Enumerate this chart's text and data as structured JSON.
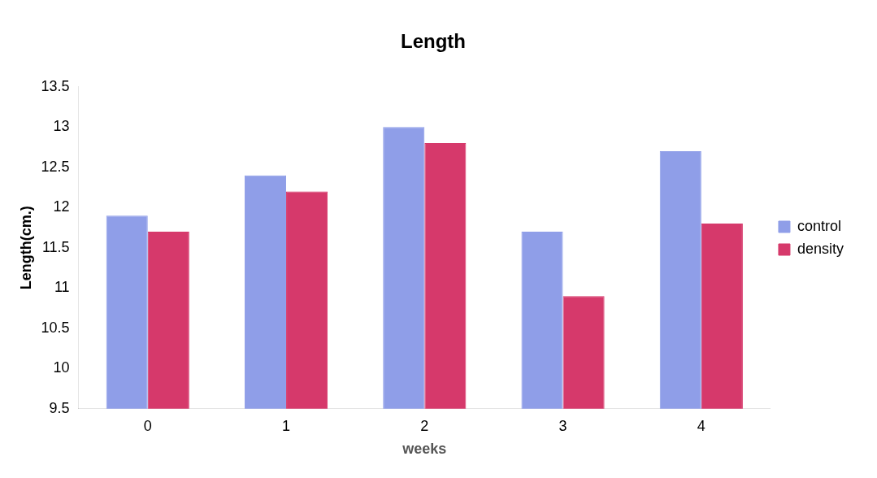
{
  "chart_data": {
    "type": "bar",
    "title": "Length",
    "xlabel": "weeks",
    "ylabel": "Length(cm.)",
    "categories": [
      "0",
      "1",
      "2",
      "3",
      "4"
    ],
    "series": [
      {
        "name": "control",
        "color": "#8f9ee8",
        "values": [
          11.9,
          12.4,
          13.0,
          11.7,
          12.7
        ]
      },
      {
        "name": "density",
        "color": "#d6396b",
        "values": [
          11.7,
          12.2,
          12.8,
          10.9,
          11.8
        ]
      }
    ],
    "ylim": [
      9.5,
      13.5
    ],
    "yticks": [
      9.5,
      10,
      10.5,
      11,
      11.5,
      12,
      12.5,
      13,
      13.5
    ],
    "grid": false,
    "legend": "right"
  }
}
